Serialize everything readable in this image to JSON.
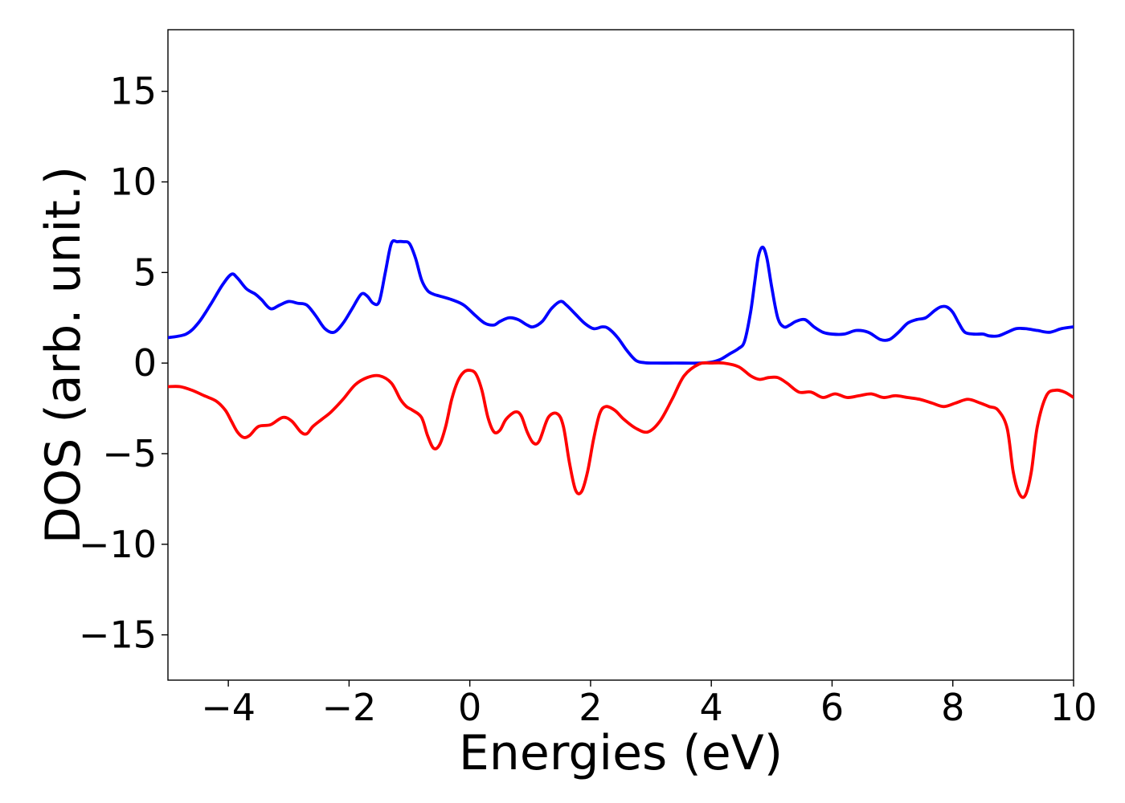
{
  "chart_data": {
    "type": "line",
    "xlabel": "Energies (eV)",
    "ylabel": "DOS (arb. unit.)",
    "xlim": [
      -5,
      10
    ],
    "ylim": [
      -17.5,
      18.4
    ],
    "xticks": [
      -4,
      -2,
      0,
      2,
      4,
      6,
      8,
      10
    ],
    "yticks": [
      -15,
      -10,
      -5,
      0,
      5,
      10,
      15
    ],
    "xtick_labels": [
      "−4",
      "−2",
      "0",
      "2",
      "4",
      "6",
      "8",
      "10"
    ],
    "ytick_labels": [
      "−15",
      "−10",
      "−5",
      "0",
      "5",
      "10",
      "15"
    ],
    "grid": false,
    "series": [
      {
        "color": "#0000ff",
        "x": [
          -5.0,
          -4.7,
          -4.5,
          -4.3,
          -4.1,
          -3.95,
          -3.85,
          -3.7,
          -3.55,
          -3.45,
          -3.3,
          -3.15,
          -3.0,
          -2.85,
          -2.7,
          -2.55,
          -2.4,
          -2.25,
          -2.1,
          -1.95,
          -1.8,
          -1.7,
          -1.6,
          -1.5,
          -1.4,
          -1.3,
          -1.2,
          -1.1,
          -1.0,
          -0.9,
          -0.8,
          -0.7,
          -0.6,
          -0.5,
          -0.3,
          -0.1,
          0.1,
          0.25,
          0.4,
          0.5,
          0.65,
          0.8,
          0.95,
          1.05,
          1.2,
          1.35,
          1.5,
          1.6,
          1.75,
          1.9,
          2.05,
          2.2,
          2.3,
          2.45,
          2.6,
          2.75,
          2.9,
          3.1,
          3.4,
          3.8,
          4.0,
          4.15,
          4.3,
          4.45,
          4.55,
          4.65,
          4.72,
          4.78,
          4.85,
          4.92,
          5.0,
          5.1,
          5.2,
          5.3,
          5.4,
          5.55,
          5.7,
          5.85,
          6.0,
          6.2,
          6.4,
          6.6,
          6.8,
          6.95,
          7.1,
          7.25,
          7.4,
          7.55,
          7.7,
          7.8,
          7.9,
          8.0,
          8.1,
          8.2,
          8.35,
          8.5,
          8.6,
          8.75,
          8.9,
          9.05,
          9.2,
          9.4,
          9.6,
          9.8,
          10.0
        ],
        "y": [
          1.4,
          1.6,
          2.2,
          3.2,
          4.3,
          4.9,
          4.7,
          4.1,
          3.8,
          3.5,
          3.0,
          3.2,
          3.4,
          3.3,
          3.2,
          2.6,
          1.9,
          1.7,
          2.2,
          3.0,
          3.8,
          3.7,
          3.3,
          3.4,
          5.0,
          6.6,
          6.7,
          6.7,
          6.6,
          5.8,
          4.6,
          4.0,
          3.8,
          3.7,
          3.5,
          3.2,
          2.6,
          2.2,
          2.1,
          2.3,
          2.5,
          2.4,
          2.1,
          2.0,
          2.3,
          3.0,
          3.4,
          3.2,
          2.7,
          2.2,
          1.9,
          2.0,
          1.9,
          1.4,
          0.7,
          0.15,
          0.02,
          0.0,
          0.0,
          0.0,
          0.05,
          0.2,
          0.5,
          0.8,
          1.2,
          2.8,
          4.5,
          5.9,
          6.4,
          5.8,
          4.2,
          2.5,
          2.0,
          2.1,
          2.3,
          2.4,
          2.0,
          1.7,
          1.6,
          1.6,
          1.8,
          1.7,
          1.3,
          1.3,
          1.7,
          2.2,
          2.4,
          2.5,
          2.9,
          3.1,
          3.1,
          2.8,
          2.2,
          1.7,
          1.6,
          1.6,
          1.5,
          1.5,
          1.7,
          1.9,
          1.9,
          1.8,
          1.7,
          1.9,
          2.0
        ]
      },
      {
        "color": "#ff0000",
        "x": [
          -5.0,
          -4.8,
          -4.6,
          -4.4,
          -4.2,
          -4.05,
          -3.95,
          -3.85,
          -3.75,
          -3.65,
          -3.5,
          -3.3,
          -3.1,
          -2.95,
          -2.8,
          -2.7,
          -2.6,
          -2.45,
          -2.3,
          -2.1,
          -1.9,
          -1.7,
          -1.5,
          -1.3,
          -1.15,
          -1.05,
          -0.95,
          -0.8,
          -0.7,
          -0.6,
          -0.5,
          -0.4,
          -0.3,
          -0.2,
          -0.1,
          0.0,
          0.1,
          0.2,
          0.3,
          0.4,
          0.5,
          0.6,
          0.75,
          0.85,
          0.95,
          1.05,
          1.15,
          1.3,
          1.45,
          1.55,
          1.65,
          1.75,
          1.85,
          1.95,
          2.05,
          2.15,
          2.25,
          2.4,
          2.55,
          2.75,
          2.95,
          3.15,
          3.35,
          3.55,
          3.8,
          4.0,
          4.2,
          4.45,
          4.65,
          4.8,
          4.95,
          5.1,
          5.25,
          5.45,
          5.65,
          5.85,
          6.05,
          6.25,
          6.45,
          6.65,
          6.85,
          7.05,
          7.25,
          7.45,
          7.65,
          7.85,
          8.05,
          8.25,
          8.45,
          8.6,
          8.75,
          8.9,
          9.0,
          9.1,
          9.2,
          9.3,
          9.4,
          9.55,
          9.7,
          9.85,
          10.0
        ],
        "y": [
          -1.3,
          -1.3,
          -1.5,
          -1.8,
          -2.1,
          -2.6,
          -3.2,
          -3.8,
          -4.1,
          -4.0,
          -3.5,
          -3.4,
          -3.0,
          -3.2,
          -3.8,
          -3.9,
          -3.5,
          -3.1,
          -2.7,
          -2.0,
          -1.2,
          -0.8,
          -0.7,
          -1.1,
          -2.0,
          -2.4,
          -2.6,
          -3.0,
          -4.0,
          -4.7,
          -4.5,
          -3.5,
          -2.0,
          -1.0,
          -0.5,
          -0.4,
          -0.6,
          -1.5,
          -3.0,
          -3.8,
          -3.7,
          -3.1,
          -2.7,
          -2.9,
          -3.8,
          -4.4,
          -4.3,
          -3.0,
          -2.8,
          -3.5,
          -5.5,
          -7.0,
          -7.1,
          -6.0,
          -4.2,
          -2.8,
          -2.4,
          -2.6,
          -3.1,
          -3.6,
          -3.8,
          -3.2,
          -2.0,
          -0.7,
          -0.05,
          0.0,
          0.0,
          -0.2,
          -0.7,
          -0.9,
          -0.8,
          -0.8,
          -1.1,
          -1.6,
          -1.6,
          -1.9,
          -1.7,
          -1.9,
          -1.8,
          -1.7,
          -1.9,
          -1.8,
          -1.9,
          -2.0,
          -2.2,
          -2.4,
          -2.2,
          -2.0,
          -2.2,
          -2.4,
          -2.6,
          -3.6,
          -6.0,
          -7.2,
          -7.3,
          -6.0,
          -3.5,
          -1.8,
          -1.5,
          -1.6,
          -1.9
        ]
      }
    ]
  }
}
